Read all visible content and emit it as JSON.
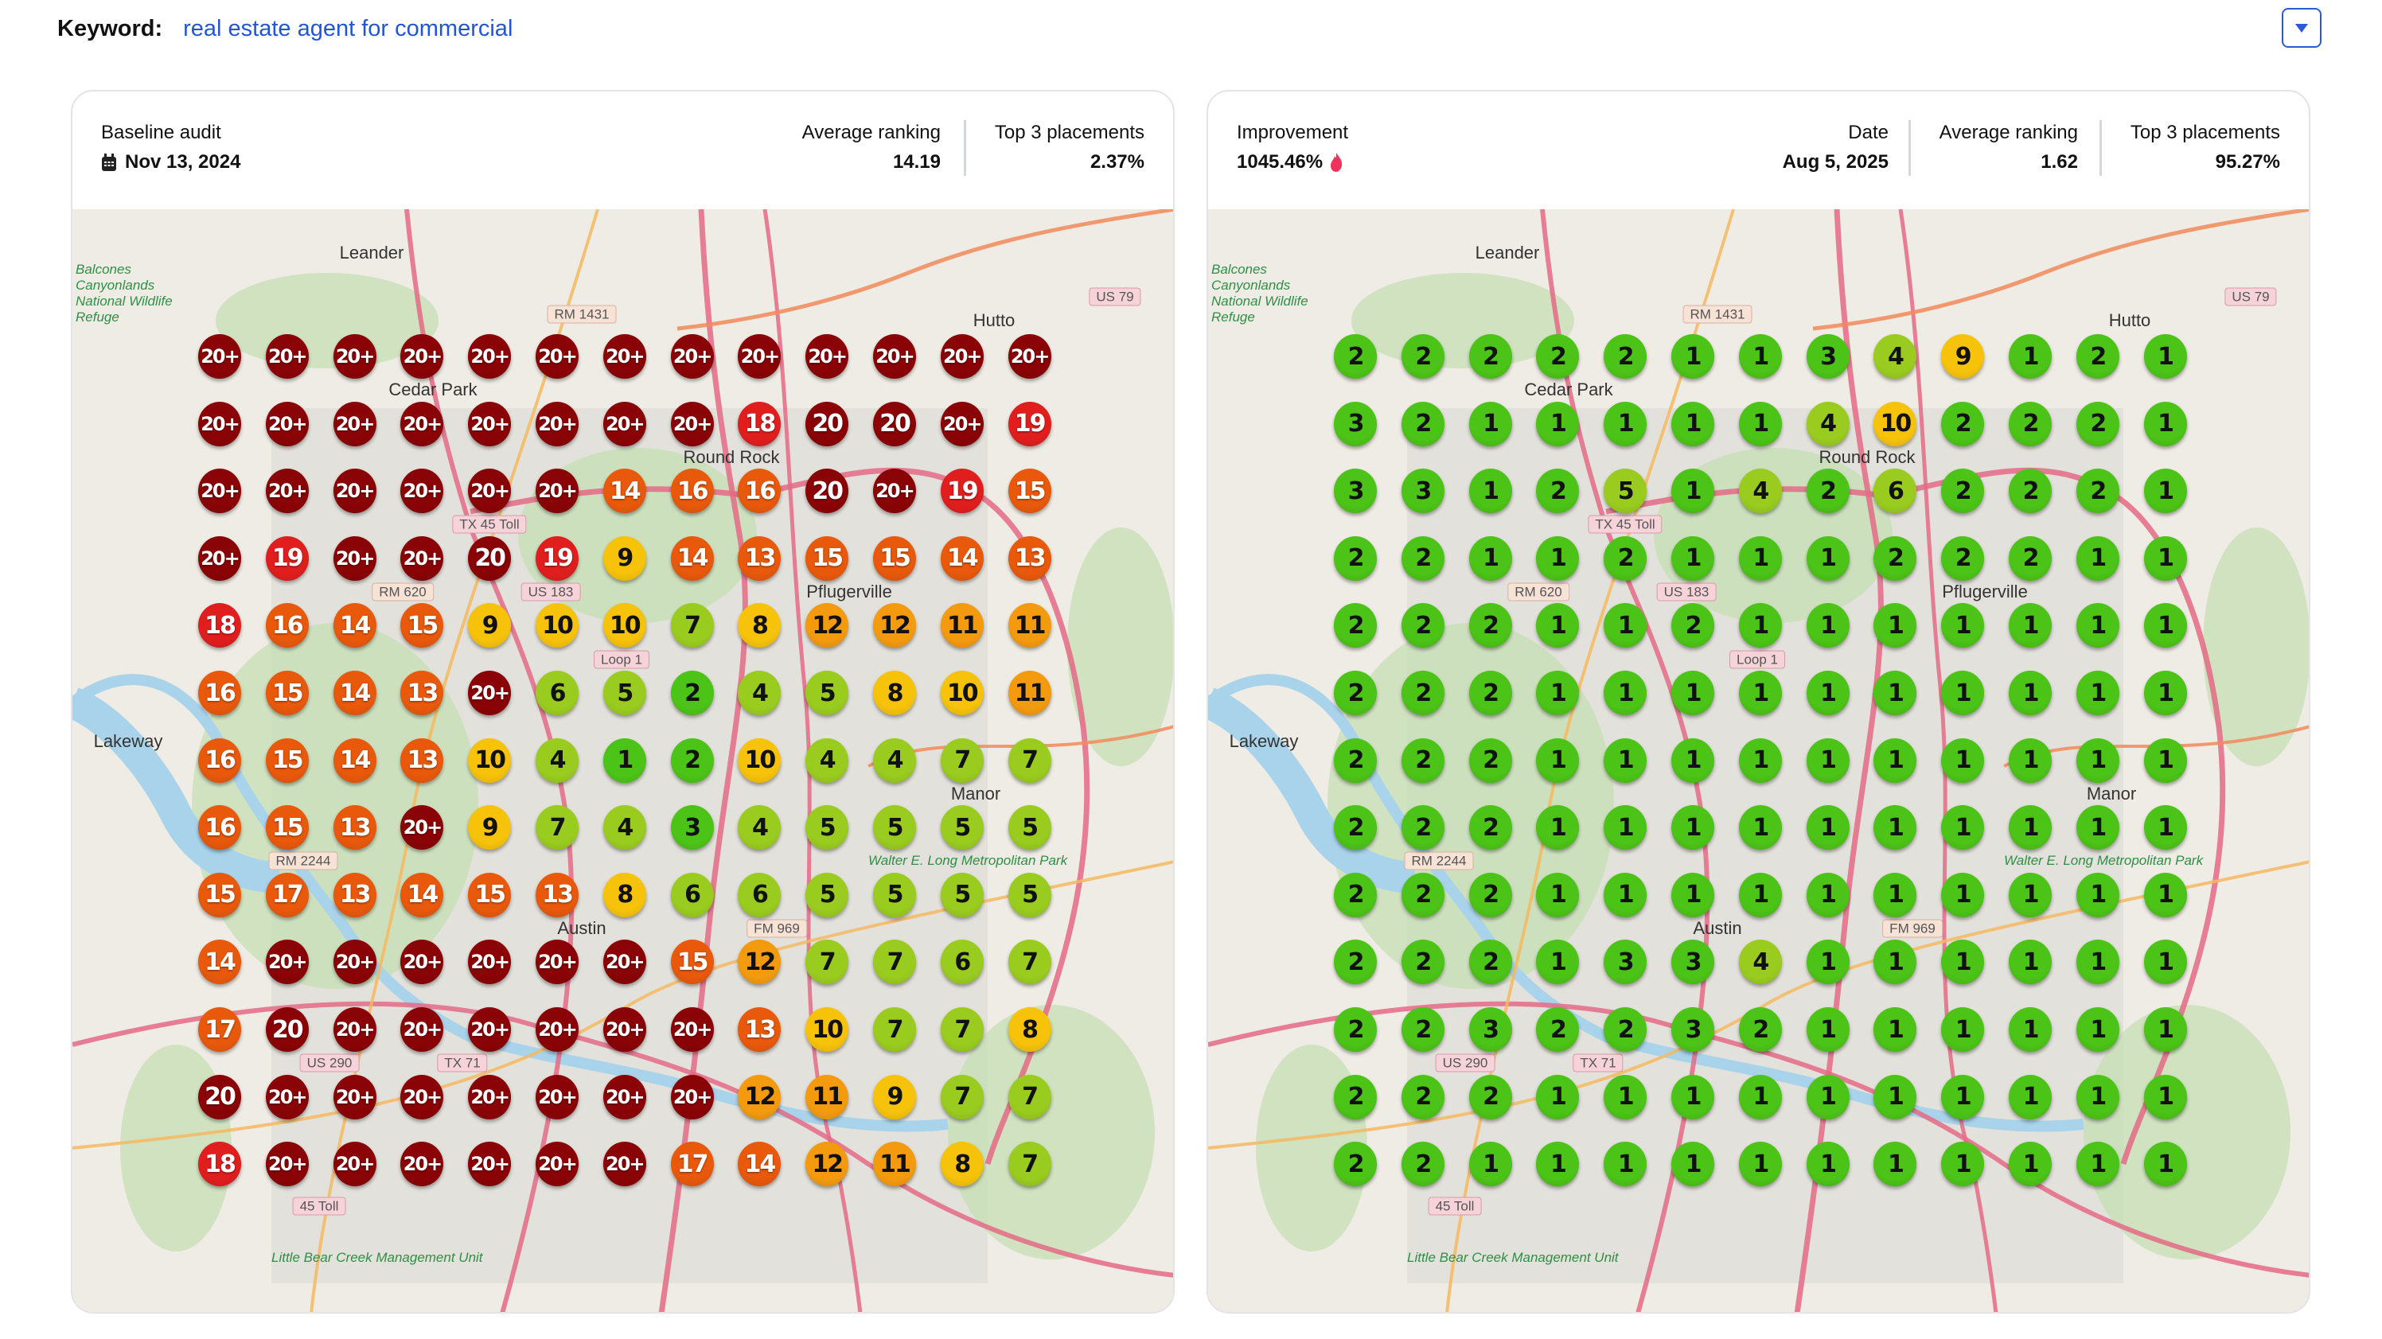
{
  "keyword": {
    "label": "Keyword:",
    "value": "real estate agent for commercial"
  },
  "dropdown": {
    "icon": "caret-down-icon"
  },
  "rank_colors": {
    "20+": "#8a0306",
    "20": "#8a0306",
    "18-19": "#e01e1e",
    "13-17": "#e8590c",
    "11-12": "#f39a0f",
    "8-10": "#f6c20a",
    "4-7": "#99cc1f",
    "1-3": "#4cc417"
  },
  "map_labels": {
    "places": [
      "Leander",
      "Cedar Park",
      "Round Rock",
      "Hutto",
      "Lakeway",
      "Manor",
      "Austin",
      "Pflugerville"
    ],
    "shields": [
      "RM 1431",
      "US 79",
      "RM 620",
      "US 183",
      "Loop 1",
      "RM 2244",
      "FM 969",
      "US 290",
      "TX 71",
      "45 Toll",
      "TX 45 Toll"
    ],
    "parks": [
      "Balcones Canyonlands National Wildlife Refuge",
      "Walter E. Long Metropolitan Park",
      "Little Bear Creek Management Unit"
    ]
  },
  "left_card": {
    "title": "Baseline audit",
    "date_icon": "calendar-icon",
    "date": "Nov 13, 2024",
    "avg_label": "Average ranking",
    "avg_value": "14.19",
    "top3_label": "Top 3 placements",
    "top3_value": "2.37%",
    "grid": [
      [
        "20+",
        "20+",
        "20+",
        "20+",
        "20+",
        "20+",
        "20+",
        "20+",
        "20+",
        "20+",
        "20+",
        "20+",
        "20+"
      ],
      [
        "20+",
        "20+",
        "20+",
        "20+",
        "20+",
        "20+",
        "20+",
        "20+",
        "18",
        "20",
        "20",
        "20+",
        "19"
      ],
      [
        "20+",
        "20+",
        "20+",
        "20+",
        "20+",
        "20+",
        "14",
        "16",
        "16",
        "20",
        "20+",
        "19",
        "15"
      ],
      [
        "20+",
        "19",
        "20+",
        "20+",
        "20",
        "19",
        "9",
        "14",
        "13",
        "15",
        "15",
        "14",
        "13"
      ],
      [
        "18",
        "16",
        "14",
        "15",
        "9",
        "10",
        "10",
        "7",
        "8",
        "12",
        "12",
        "11",
        "11"
      ],
      [
        "16",
        "15",
        "14",
        "13",
        "20+",
        "6",
        "5",
        "2",
        "4",
        "5",
        "8",
        "10",
        "11"
      ],
      [
        "16",
        "15",
        "14",
        "13",
        "10",
        "4",
        "1",
        "2",
        "10",
        "4",
        "4",
        "7",
        "7"
      ],
      [
        "16",
        "15",
        "13",
        "20+",
        "9",
        "7",
        "4",
        "3",
        "4",
        "5",
        "5",
        "5",
        "5"
      ],
      [
        "15",
        "17",
        "13",
        "14",
        "15",
        "13",
        "8",
        "6",
        "6",
        "5",
        "5",
        "5",
        "5"
      ],
      [
        "14",
        "20+",
        "20+",
        "20+",
        "20+",
        "20+",
        "20+",
        "15",
        "12",
        "7",
        "7",
        "6",
        "7"
      ],
      [
        "17",
        "20",
        "20+",
        "20+",
        "20+",
        "20+",
        "20+",
        "20+",
        "13",
        "10",
        "7",
        "7",
        "8"
      ],
      [
        "20",
        "20+",
        "20+",
        "20+",
        "20+",
        "20+",
        "20+",
        "20+",
        "12",
        "11",
        "9",
        "7",
        "7"
      ],
      [
        "18",
        "20+",
        "20+",
        "20+",
        "20+",
        "20+",
        "20+",
        "17",
        "14",
        "12",
        "11",
        "8",
        "7"
      ]
    ]
  },
  "right_card": {
    "improvement_label": "Improvement",
    "improvement_value": "1045.46%",
    "improvement_icon": "flame-icon",
    "date_label": "Date",
    "date_value": "Aug 5, 2025",
    "avg_label": "Average ranking",
    "avg_value": "1.62",
    "top3_label": "Top 3 placements",
    "top3_value": "95.27%",
    "grid": [
      [
        "2",
        "2",
        "2",
        "2",
        "2",
        "1",
        "1",
        "3",
        "4",
        "9",
        "1",
        "2",
        "1"
      ],
      [
        "3",
        "2",
        "1",
        "1",
        "1",
        "1",
        "1",
        "4",
        "10",
        "2",
        "2",
        "2",
        "1"
      ],
      [
        "3",
        "3",
        "1",
        "2",
        "5",
        "1",
        "4",
        "2",
        "6",
        "2",
        "2",
        "2",
        "1"
      ],
      [
        "2",
        "2",
        "1",
        "1",
        "2",
        "1",
        "1",
        "1",
        "2",
        "2",
        "2",
        "1",
        "1"
      ],
      [
        "2",
        "2",
        "2",
        "1",
        "1",
        "2",
        "1",
        "1",
        "1",
        "1",
        "1",
        "1",
        "1"
      ],
      [
        "2",
        "2",
        "2",
        "1",
        "1",
        "1",
        "1",
        "1",
        "1",
        "1",
        "1",
        "1",
        "1"
      ],
      [
        "2",
        "2",
        "2",
        "1",
        "1",
        "1",
        "1",
        "1",
        "1",
        "1",
        "1",
        "1",
        "1"
      ],
      [
        "2",
        "2",
        "2",
        "1",
        "1",
        "1",
        "1",
        "1",
        "1",
        "1",
        "1",
        "1",
        "1"
      ],
      [
        "2",
        "2",
        "2",
        "1",
        "1",
        "1",
        "1",
        "1",
        "1",
        "1",
        "1",
        "1",
        "1"
      ],
      [
        "2",
        "2",
        "2",
        "1",
        "3",
        "3",
        "4",
        "1",
        "1",
        "1",
        "1",
        "1",
        "1"
      ],
      [
        "2",
        "2",
        "3",
        "2",
        "2",
        "3",
        "2",
        "1",
        "1",
        "1",
        "1",
        "1",
        "1"
      ],
      [
        "2",
        "2",
        "2",
        "1",
        "1",
        "1",
        "1",
        "1",
        "1",
        "1",
        "1",
        "1",
        "1"
      ],
      [
        "2",
        "2",
        "1",
        "1",
        "1",
        "1",
        "1",
        "1",
        "1",
        "1",
        "1",
        "1",
        "1"
      ]
    ]
  }
}
